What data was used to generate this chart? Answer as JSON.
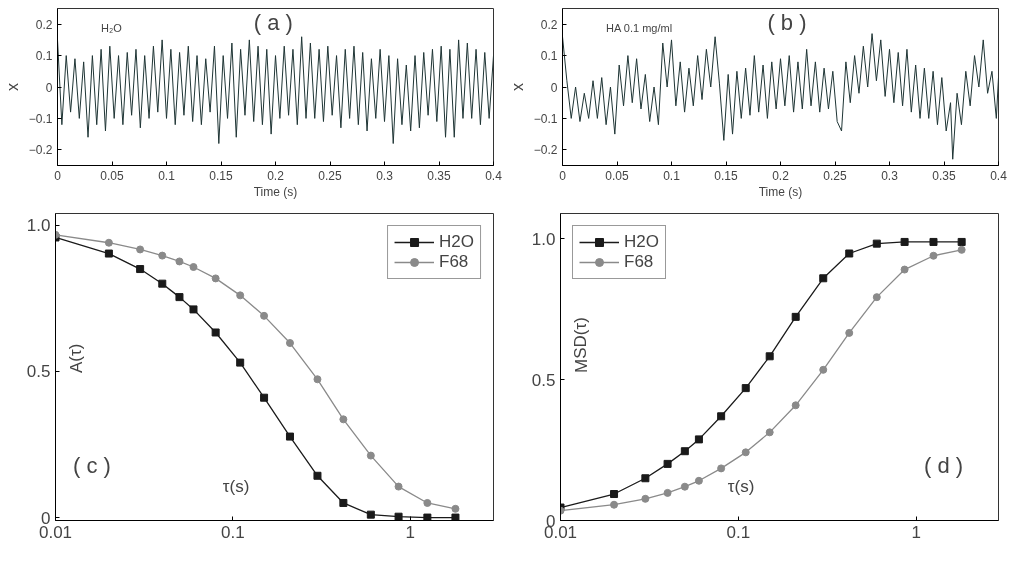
{
  "chart_data": [
    {
      "type": "line",
      "xlabel": "Time (s)",
      "ylabel": "x",
      "annotations": [
        "H₂O",
        "( a )"
      ],
      "marker": "none",
      "line_style": "solid",
      "grid": false,
      "legend": false,
      "xlim": [
        0,
        0.4
      ],
      "ylim": [
        -0.25,
        0.25
      ],
      "xticks": [
        0,
        0.05,
        0.1,
        0.15,
        0.2,
        0.25,
        0.3,
        0.35,
        0.4
      ],
      "yticks": [
        -0.2,
        -0.1,
        0,
        0.1,
        0.2
      ],
      "x": [
        0,
        0.004,
        0.008,
        0.012,
        0.016,
        0.02,
        0.024,
        0.028,
        0.032,
        0.036,
        0.04,
        0.044,
        0.048,
        0.052,
        0.056,
        0.06,
        0.064,
        0.068,
        0.072,
        0.076,
        0.08,
        0.084,
        0.088,
        0.092,
        0.096,
        0.1,
        0.104,
        0.108,
        0.112,
        0.116,
        0.12,
        0.124,
        0.128,
        0.132,
        0.136,
        0.14,
        0.144,
        0.148,
        0.152,
        0.156,
        0.16,
        0.164,
        0.168,
        0.172,
        0.176,
        0.18,
        0.184,
        0.188,
        0.192,
        0.196,
        0.2,
        0.204,
        0.208,
        0.212,
        0.216,
        0.22,
        0.224,
        0.228,
        0.232,
        0.236,
        0.24,
        0.244,
        0.248,
        0.252,
        0.256,
        0.26,
        0.264,
        0.268,
        0.272,
        0.276,
        0.28,
        0.284,
        0.288,
        0.292,
        0.296,
        0.3,
        0.304,
        0.308,
        0.312,
        0.316,
        0.32,
        0.324,
        0.328,
        0.332,
        0.336,
        0.34,
        0.344,
        0.348,
        0.352,
        0.356,
        0.36,
        0.364,
        0.368,
        0.372,
        0.376,
        0.38,
        0.384,
        0.388,
        0.392,
        0.396,
        0.4
      ],
      "series": [
        {
          "color": "#1f3535",
          "values": [
            0.15,
            -0.12,
            0.1,
            -0.08,
            0.09,
            -0.1,
            0.08,
            -0.16,
            0.1,
            -0.12,
            0.12,
            -0.14,
            0.13,
            -0.1,
            0.1,
            -0.12,
            0.11,
            -0.09,
            0.12,
            -0.13,
            0.1,
            -0.1,
            0.13,
            -0.08,
            0.15,
            -0.1,
            0.12,
            -0.12,
            0.11,
            -0.09,
            0.13,
            -0.11,
            0.1,
            -0.12,
            0.09,
            -0.08,
            0.13,
            -0.18,
            0.1,
            -0.1,
            0.14,
            -0.16,
            0.12,
            -0.09,
            0.15,
            -0.11,
            0.13,
            -0.12,
            0.12,
            -0.15,
            0.1,
            -0.1,
            0.13,
            -0.09,
            0.12,
            -0.12,
            0.16,
            -0.1,
            0.14,
            -0.1,
            0.12,
            -0.11,
            0.13,
            -0.09,
            0.1,
            -0.13,
            0.12,
            -0.1,
            0.13,
            -0.12,
            0.11,
            -0.14,
            0.09,
            -0.1,
            0.12,
            -0.11,
            0.1,
            -0.18,
            0.09,
            -0.12,
            0.07,
            -0.14,
            0.1,
            -0.13,
            0.11,
            -0.09,
            0.12,
            -0.11,
            0.13,
            -0.16,
            0.12,
            -0.16,
            0.15,
            -0.1,
            0.14,
            -0.1,
            0.12,
            -0.12,
            0.11,
            -0.1,
            0.1
          ]
        }
      ]
    },
    {
      "type": "line",
      "xlabel": "Time (s)",
      "ylabel": "x",
      "annotations": [
        "HA 0.1 mg/ml",
        "( b )"
      ],
      "marker": "none",
      "line_style": "solid",
      "grid": false,
      "legend": false,
      "xlim": [
        0,
        0.4
      ],
      "ylim": [
        -0.25,
        0.25
      ],
      "xticks": [
        0,
        0.05,
        0.1,
        0.15,
        0.2,
        0.25,
        0.3,
        0.35,
        0.4
      ],
      "yticks": [
        -0.2,
        -0.1,
        0,
        0.1,
        0.2
      ],
      "x": [
        0,
        0.004,
        0.008,
        0.012,
        0.016,
        0.02,
        0.024,
        0.028,
        0.032,
        0.036,
        0.04,
        0.044,
        0.048,
        0.052,
        0.056,
        0.06,
        0.064,
        0.068,
        0.072,
        0.076,
        0.08,
        0.084,
        0.088,
        0.092,
        0.096,
        0.1,
        0.104,
        0.108,
        0.112,
        0.116,
        0.12,
        0.124,
        0.128,
        0.132,
        0.136,
        0.14,
        0.144,
        0.148,
        0.152,
        0.156,
        0.16,
        0.164,
        0.168,
        0.172,
        0.176,
        0.18,
        0.184,
        0.188,
        0.192,
        0.196,
        0.2,
        0.204,
        0.208,
        0.212,
        0.216,
        0.22,
        0.224,
        0.228,
        0.232,
        0.236,
        0.24,
        0.244,
        0.248,
        0.252,
        0.256,
        0.26,
        0.264,
        0.268,
        0.272,
        0.276,
        0.28,
        0.284,
        0.288,
        0.292,
        0.296,
        0.3,
        0.304,
        0.308,
        0.312,
        0.316,
        0.32,
        0.324,
        0.328,
        0.332,
        0.336,
        0.34,
        0.344,
        0.348,
        0.352,
        0.356,
        0.358,
        0.362,
        0.366,
        0.37,
        0.374,
        0.378,
        0.382,
        0.386,
        0.39,
        0.394,
        0.398,
        0.4
      ],
      "series": [
        {
          "color": "#1f3535",
          "values": [
            0.16,
            0.02,
            -0.1,
            0.0,
            -0.11,
            -0.02,
            -0.1,
            0.02,
            -0.1,
            0.03,
            -0.12,
            0.0,
            -0.15,
            0.07,
            -0.06,
            0.1,
            -0.05,
            0.09,
            -0.07,
            0.04,
            -0.11,
            0.0,
            -0.12,
            0.14,
            0.0,
            0.15,
            -0.06,
            0.08,
            -0.08,
            0.06,
            -0.06,
            0.1,
            -0.04,
            0.12,
            0.0,
            0.16,
            0.01,
            -0.17,
            0.04,
            -0.15,
            0.05,
            -0.1,
            0.06,
            -0.09,
            0.1,
            -0.08,
            0.07,
            -0.1,
            0.08,
            -0.07,
            0.09,
            -0.06,
            0.1,
            -0.08,
            0.08,
            -0.07,
            0.12,
            -0.06,
            0.08,
            -0.08,
            0.06,
            -0.07,
            0.05,
            -0.11,
            -0.14,
            0.08,
            -0.05,
            0.1,
            -0.02,
            0.13,
            0.0,
            0.17,
            0.02,
            0.15,
            -0.03,
            0.12,
            -0.05,
            0.11,
            -0.06,
            0.12,
            -0.08,
            0.07,
            -0.1,
            0.06,
            -0.1,
            0.05,
            -0.12,
            0.03,
            -0.14,
            -0.05,
            -0.23,
            -0.02,
            -0.12,
            0.05,
            -0.06,
            0.1,
            0.0,
            0.15,
            -0.02,
            0.05,
            -0.1,
            0.03
          ]
        }
      ]
    },
    {
      "type": "line",
      "xlabel": "τ(s)",
      "ylabel": "A(τ)",
      "annotations": [
        "( c )"
      ],
      "log": "x",
      "grid": false,
      "legend": "top right",
      "line_style": "solid",
      "xlim": [
        0.01,
        2.95
      ],
      "ylim": [
        -0.01,
        1.04
      ],
      "xticks": [
        0.01,
        0.1,
        1
      ],
      "yticks": [
        0,
        0.5,
        {
          "value": 1,
          "label": "1.0"
        }
      ],
      "x": [
        0.01,
        0.02,
        0.03,
        0.04,
        0.05,
        0.06,
        0.08,
        0.11,
        0.15,
        0.21,
        0.3,
        0.42,
        0.6,
        0.86,
        1.25,
        1.8
      ],
      "series": [
        {
          "name": "H2O",
          "color": "#1a1a1a",
          "marker": "square",
          "values": [
            0.958,
            0.903,
            0.85,
            0.8,
            0.754,
            0.712,
            0.633,
            0.53,
            0.41,
            0.277,
            0.143,
            0.05,
            0.01,
            0.003,
            0,
            0
          ]
        },
        {
          "name": "F68",
          "color": "#8a8a8a",
          "marker": "circle",
          "values": [
            0.967,
            0.94,
            0.917,
            0.896,
            0.876,
            0.857,
            0.818,
            0.76,
            0.69,
            0.597,
            0.473,
            0.336,
            0.212,
            0.106,
            0.05,
            0.03
          ]
        }
      ]
    },
    {
      "type": "line",
      "xlabel": "τ(s)",
      "ylabel": "MSD(τ)",
      "annotations": [
        "( d )"
      ],
      "log": "x",
      "grid": false,
      "legend": "top left",
      "line_style": "solid",
      "xlim": [
        0.01,
        2.9
      ],
      "ylim": [
        0,
        1.09
      ],
      "xticks": [
        0.01,
        0.1,
        1
      ],
      "yticks": [
        0,
        0.5,
        {
          "value": 1,
          "label": "1.0"
        }
      ],
      "x": [
        0.01,
        0.02,
        0.03,
        0.04,
        0.05,
        0.06,
        0.08,
        0.11,
        0.15,
        0.21,
        0.3,
        0.42,
        0.6,
        0.86,
        1.25,
        1.8
      ],
      "series": [
        {
          "name": "H2O",
          "color": "#1a1a1a",
          "marker": "square",
          "values": [
            0.046,
            0.094,
            0.15,
            0.201,
            0.246,
            0.288,
            0.37,
            0.47,
            0.583,
            0.723,
            0.86,
            0.948,
            0.983,
            0.989,
            0.989,
            0.989
          ]
        },
        {
          "name": "F68",
          "color": "#8a8a8a",
          "marker": "circle",
          "values": [
            0.035,
            0.056,
            0.077,
            0.098,
            0.12,
            0.141,
            0.185,
            0.242,
            0.313,
            0.409,
            0.535,
            0.666,
            0.793,
            0.891,
            0.94,
            0.961
          ]
        }
      ]
    }
  ]
}
